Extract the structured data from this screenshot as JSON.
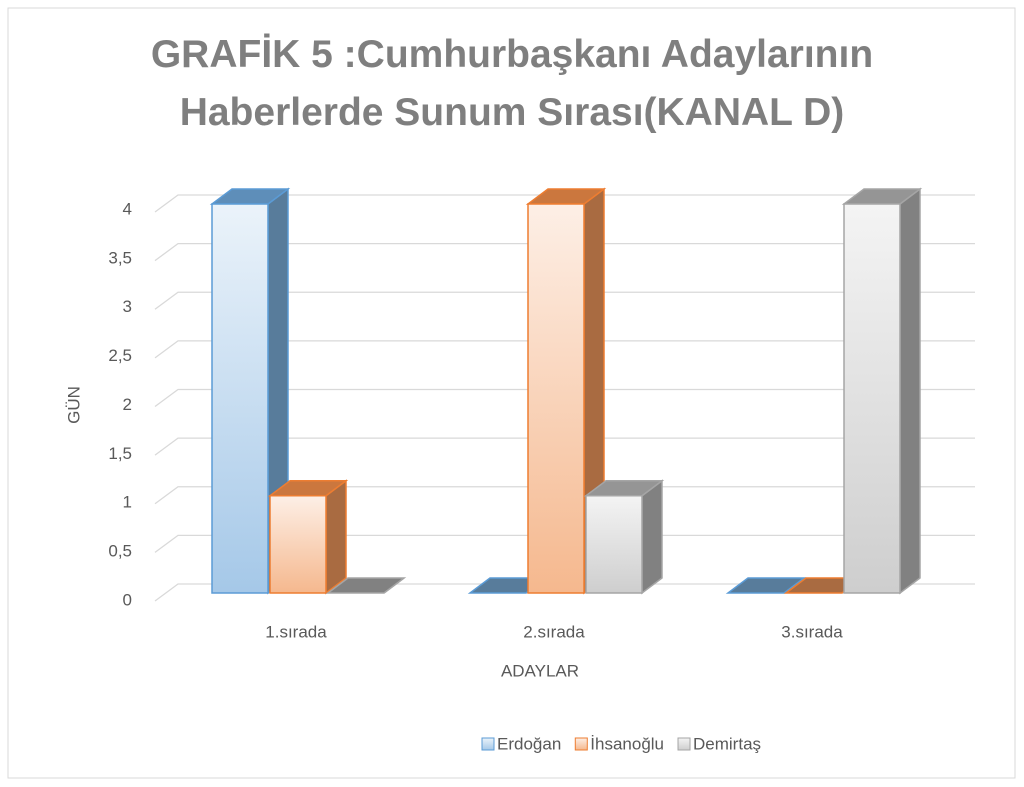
{
  "chart_data": {
    "type": "bar3d",
    "title": "GRAFİK 5 :Cumhurbaşkanı  Adaylarının Haberlerde Sunum Sırası(KANAL D)",
    "x_label": "ADAYLAR",
    "y_label": "GÜN",
    "categories": [
      "1.sırada",
      "2.sırada",
      "3.sırada"
    ],
    "series": [
      {
        "name": "Erdoğan",
        "color": "#5b9bd5",
        "values": [
          4,
          0,
          0
        ]
      },
      {
        "name": "İhsanoğlu",
        "color": "#ed7d31",
        "values": [
          1,
          4,
          0
        ]
      },
      {
        "name": "Demirtaş",
        "color": "#a5a5a5",
        "values": [
          0,
          1,
          4
        ]
      }
    ],
    "ylim": [
      0,
      4
    ],
    "yticks": [
      0,
      {
        "value": 0.5,
        "label": "0,5"
      },
      1,
      {
        "value": 1.5,
        "label": "1,5"
      },
      2,
      {
        "value": 2.5,
        "label": "2,5"
      },
      3,
      {
        "value": 3.5,
        "label": "3,5"
      },
      4
    ],
    "grid": true,
    "legend": "bottom"
  }
}
